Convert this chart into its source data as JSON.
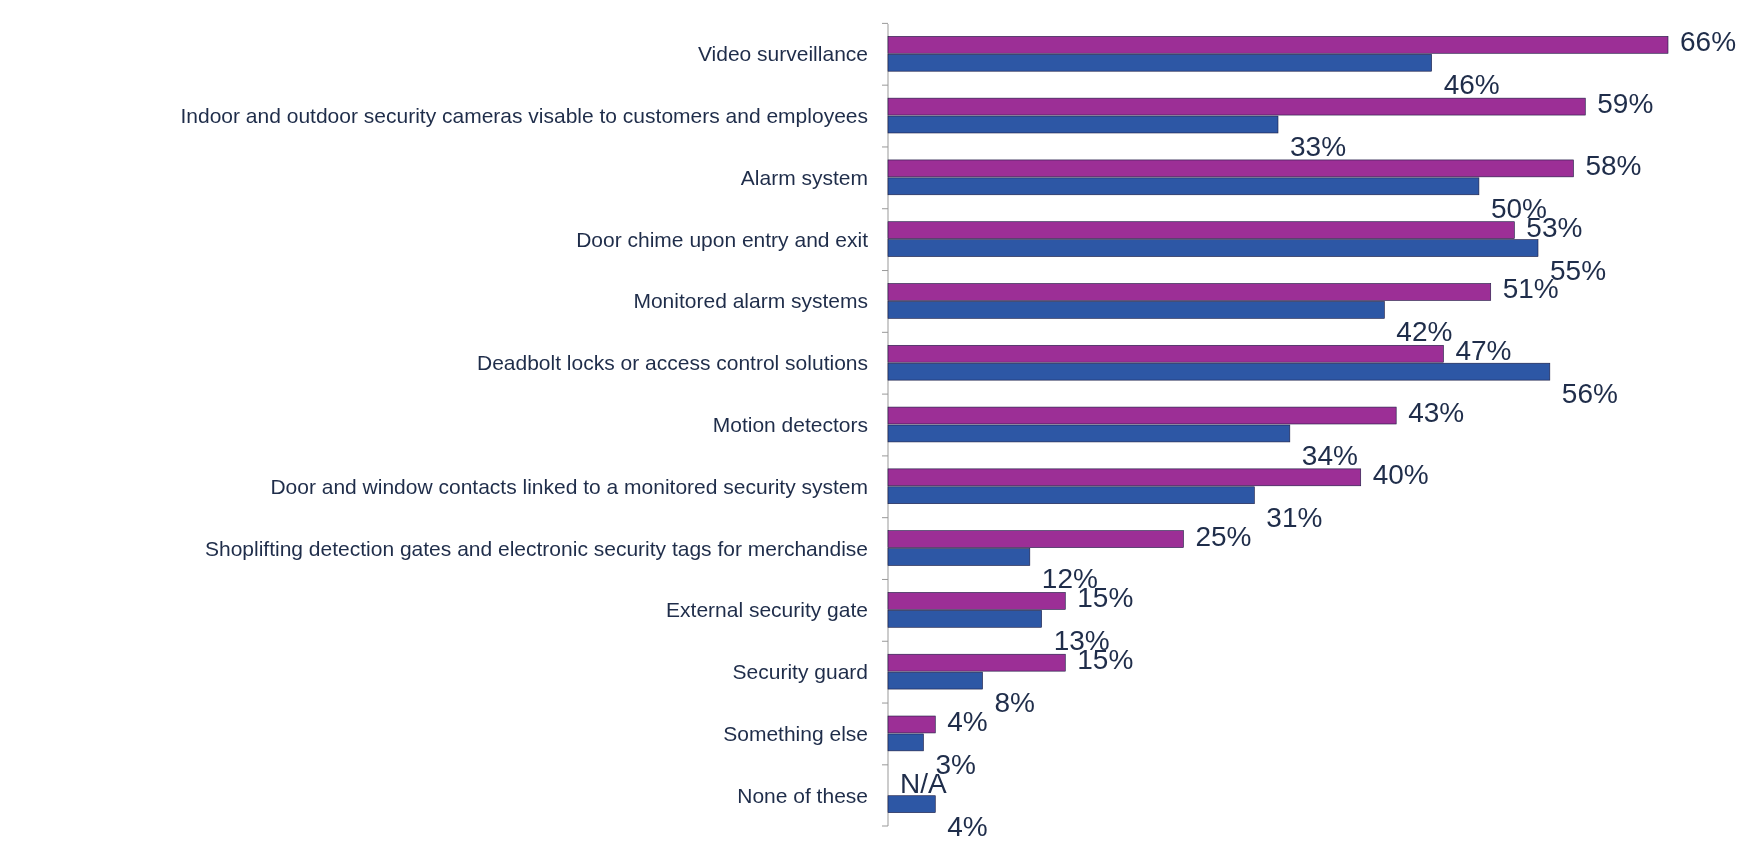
{
  "chart_data": {
    "type": "bar",
    "orientation": "horizontal",
    "categories": [
      "Video surveillance",
      "Indoor and outdoor security cameras visable to customers and employees",
      "Alarm system",
      "Door chime upon entry and exit",
      "Monitored alarm systems",
      "Deadbolt locks or access control solutions",
      "Motion detectors",
      "Door and window contacts linked to a monitored security system",
      "Shoplifting detection gates and electronic security tags for merchandise",
      "External security gate",
      "Security guard",
      "Something else",
      "None of these"
    ],
    "series": [
      {
        "color": "#9c2f96",
        "values": [
          66,
          59,
          58,
          53,
          51,
          47,
          43,
          40,
          25,
          15,
          15,
          4,
          null
        ],
        "value_labels": [
          "66%",
          "59%",
          "58%",
          "53%",
          "51%",
          "47%",
          "43%",
          "40%",
          "25%",
          "15%",
          "15%",
          "4%",
          "N/A"
        ]
      },
      {
        "color": "#2d57a5",
        "values": [
          46,
          33,
          50,
          55,
          42,
          56,
          34,
          31,
          12,
          13,
          8,
          3,
          4
        ],
        "value_labels": [
          "46%",
          "33%",
          "50%",
          "55%",
          "42%",
          "56%",
          "34%",
          "31%",
          "12%",
          "13%",
          "8%",
          "3%",
          "4%"
        ]
      }
    ]
  }
}
